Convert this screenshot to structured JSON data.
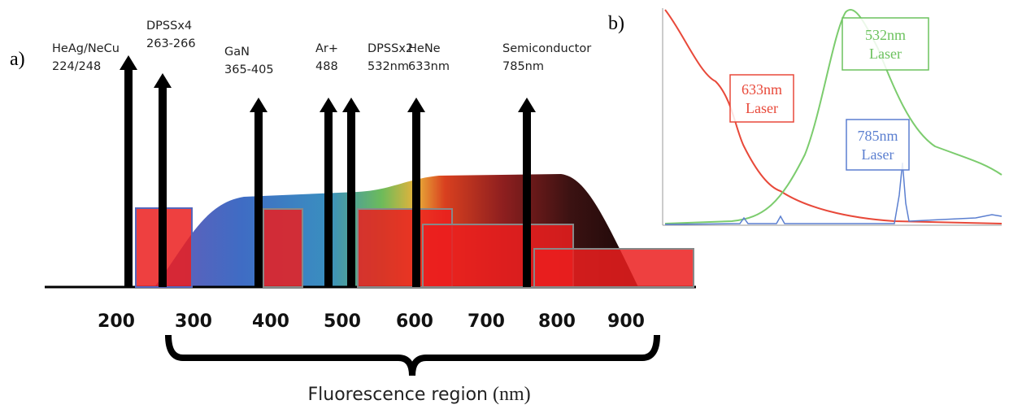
{
  "panel_a": {
    "label": "a)",
    "lasers": [
      {
        "name": "HeAg/NeCu",
        "wavelength": "224/248"
      },
      {
        "name": "DPSSx4",
        "wavelength": "263-266"
      },
      {
        "name": "GaN",
        "wavelength": "365-405"
      },
      {
        "name": "Ar+",
        "wavelength": "488"
      },
      {
        "name": "DPSSx2",
        "wavelength": "532nm"
      },
      {
        "name": "HeNe",
        "wavelength": "633nm"
      },
      {
        "name": "Semiconductor",
        "wavelength": "785nm"
      }
    ],
    "axis_labels": [
      200,
      300,
      400,
      500,
      600,
      700,
      800,
      900
    ],
    "region_label": "Fluorescence region",
    "unit": "(nm)"
  },
  "panel_b": {
    "label": "b)",
    "annotations": [
      {
        "line1": "633nm",
        "line2": "Laser"
      },
      {
        "line1": "532nm",
        "line2": "Laser"
      },
      {
        "line1": "785nm",
        "line2": "Laser"
      }
    ]
  }
}
